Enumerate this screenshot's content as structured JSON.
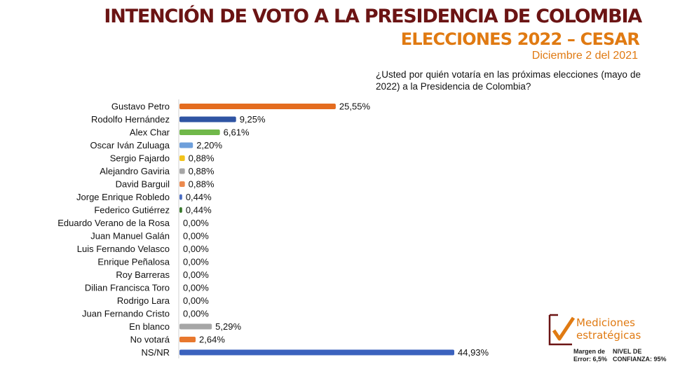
{
  "header": {
    "title": "INTENCIÓN DE VOTO A LA PRESIDENCIA DE COLOMBIA",
    "subtitle": "ELECCIONES 2022 – CESAR",
    "date": "Diciembre 2 del 2021",
    "question": "¿Usted por quién votaría en las próximas elecciones (mayo de 2022) a la Presidencia de Colombia?"
  },
  "chart_data": {
    "type": "bar",
    "orientation": "horizontal",
    "title": "",
    "xlabel": "",
    "ylabel": "",
    "xlim": [
      0,
      45
    ],
    "grid": false,
    "legend": "none",
    "categories": [
      "Gustavo Petro",
      "Rodolfo Hernández",
      "Alex Char",
      "Oscar Iván Zuluaga",
      "Sergio Fajardo",
      "Alejandro Gaviria",
      "David Barguil",
      "Jorge Enrique Robledo",
      "Federico Gutiérrez",
      "Eduardo Verano de la Rosa",
      "Juan Manuel Galán",
      "Luis Fernando Velasco",
      "Enrique Peñalosa",
      "Roy Barreras",
      "Dilian Francisca Toro",
      "Rodrigo Lara",
      "Juan Fernando Cristo",
      "En blanco",
      "No votará",
      "NS/NR"
    ],
    "values": [
      25.55,
      9.25,
      6.61,
      2.2,
      0.88,
      0.88,
      0.88,
      0.44,
      0.44,
      0.0,
      0.0,
      0.0,
      0.0,
      0.0,
      0.0,
      0.0,
      0.0,
      5.29,
      2.64,
      44.93
    ],
    "value_labels": [
      "25,55%",
      "9,25%",
      "6,61%",
      "2,20%",
      "0,88%",
      "0,88%",
      "0,88%",
      "0,44%",
      "0,44%",
      "0,00%",
      "0,00%",
      "0,00%",
      "0,00%",
      "0,00%",
      "0,00%",
      "0,00%",
      "0,00%",
      "5,29%",
      "2,64%",
      "44,93%"
    ],
    "colors": [
      "#e46c1f",
      "#2f54a3",
      "#70b84a",
      "#6e9fdb",
      "#f2c31b",
      "#a6a6a6",
      "#ec8a4e",
      "#4a6dc3",
      "#3b7a2e",
      "#a6a6a6",
      "#a6a6a6",
      "#a6a6a6",
      "#a6a6a6",
      "#a6a6a6",
      "#a6a6a6",
      "#a6a6a6",
      "#a6a6a6",
      "#a6a6a6",
      "#e8782e",
      "#3b62be"
    ]
  },
  "logo": {
    "line1": "Mediciones",
    "line2": "estratégicas",
    "accent": "#e07a12",
    "dark": "#6b1414"
  },
  "footer": {
    "margin_label": "Margen de Error: 6,5%",
    "confidence_label": "NIVEL DE CONFIANZA: 95%"
  }
}
